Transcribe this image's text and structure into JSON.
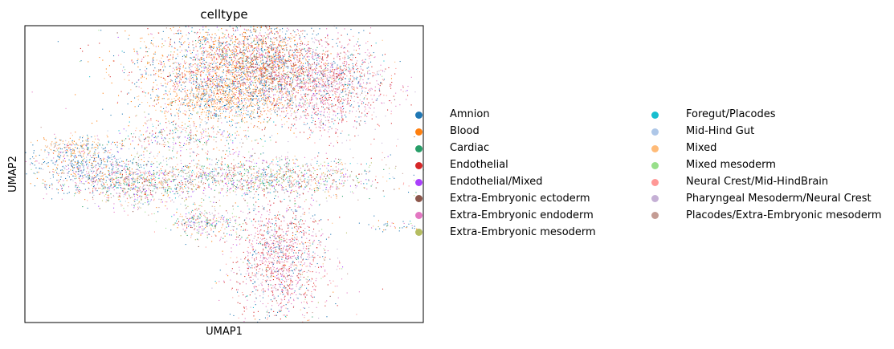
{
  "chart_data": {
    "type": "scatter",
    "title": "celltype",
    "xlabel": "UMAP1",
    "ylabel": "UMAP2",
    "xticks": [],
    "yticks": [],
    "grid": false,
    "xlim": [
      -10,
      10
    ],
    "ylim": [
      -10,
      10
    ],
    "legend_position": "right",
    "legend_columns": 2,
    "series": [
      {
        "name": "Amnion",
        "color": "#1f77b4"
      },
      {
        "name": "Blood",
        "color": "#ff7f0e"
      },
      {
        "name": "Cardiac",
        "color": "#279e68"
      },
      {
        "name": "Endothelial",
        "color": "#d62728"
      },
      {
        "name": "Endothelial/Mixed",
        "color": "#aa40fc"
      },
      {
        "name": "Extra-Embryonic ectoderm",
        "color": "#8c564b"
      },
      {
        "name": "Extra-Embryonic endoderm",
        "color": "#e377c2"
      },
      {
        "name": "Extra-Embryonic mesoderm",
        "color": "#b5bd61"
      },
      {
        "name": "Foregut/Placodes",
        "color": "#17becf"
      },
      {
        "name": "Mid-Hind Gut",
        "color": "#aec7e8"
      },
      {
        "name": "Mixed",
        "color": "#ffbb78"
      },
      {
        "name": "Mixed mesoderm",
        "color": "#98df8a"
      },
      {
        "name": "Neural Crest/Mid-HindBrain",
        "color": "#ff9896"
      },
      {
        "name": "Pharyngeal Mesoderm/Neural Crest",
        "color": "#c5b0d5"
      },
      {
        "name": "Placodes/Extra-Embryonic mesoderm",
        "color": "#c49c94"
      }
    ],
    "clusters": [
      {
        "cx": 0.0,
        "cy": 7.0,
        "sx": 2.4,
        "sy": 1.7,
        "n": 2200,
        "mix": "blue-orange"
      },
      {
        "cx": 5.0,
        "cy": 6.0,
        "sx": 1.6,
        "sy": 1.6,
        "n": 1500,
        "mix": "red-pink"
      },
      {
        "cx": 2.0,
        "cy": 7.5,
        "sx": 1.3,
        "sy": 1.3,
        "n": 900,
        "mix": "red-orange"
      },
      {
        "cx": 0.0,
        "cy": 5.0,
        "sx": 1.6,
        "sy": 0.8,
        "n": 700,
        "mix": "orange"
      },
      {
        "cx": 1.0,
        "cy": -0.2,
        "sx": 3.6,
        "sy": 0.7,
        "n": 1500,
        "mix": "mixed"
      },
      {
        "cx": -7.0,
        "cy": 0.5,
        "sx": 1.4,
        "sy": 0.9,
        "n": 650,
        "mix": "blue"
      },
      {
        "cx": -7.5,
        "cy": 1.8,
        "sx": 0.9,
        "sy": 0.35,
        "n": 160,
        "mix": "orange"
      },
      {
        "cx": -4.5,
        "cy": -0.8,
        "sx": 1.2,
        "sy": 0.8,
        "n": 500,
        "mix": "mixed"
      },
      {
        "cx": -1.0,
        "cy": -3.2,
        "sx": 0.9,
        "sy": 0.5,
        "n": 300,
        "mix": "mixed"
      },
      {
        "cx": 2.8,
        "cy": -5.8,
        "sx": 1.2,
        "sy": 2.1,
        "n": 1400,
        "mix": "red-pink"
      },
      {
        "cx": -2.0,
        "cy": 2.5,
        "sx": 1.8,
        "sy": 0.6,
        "n": 350,
        "mix": "mixed"
      },
      {
        "cx": 8.5,
        "cy": -3.5,
        "sx": 0.5,
        "sy": 0.2,
        "n": 40,
        "mix": "blue"
      }
    ]
  }
}
